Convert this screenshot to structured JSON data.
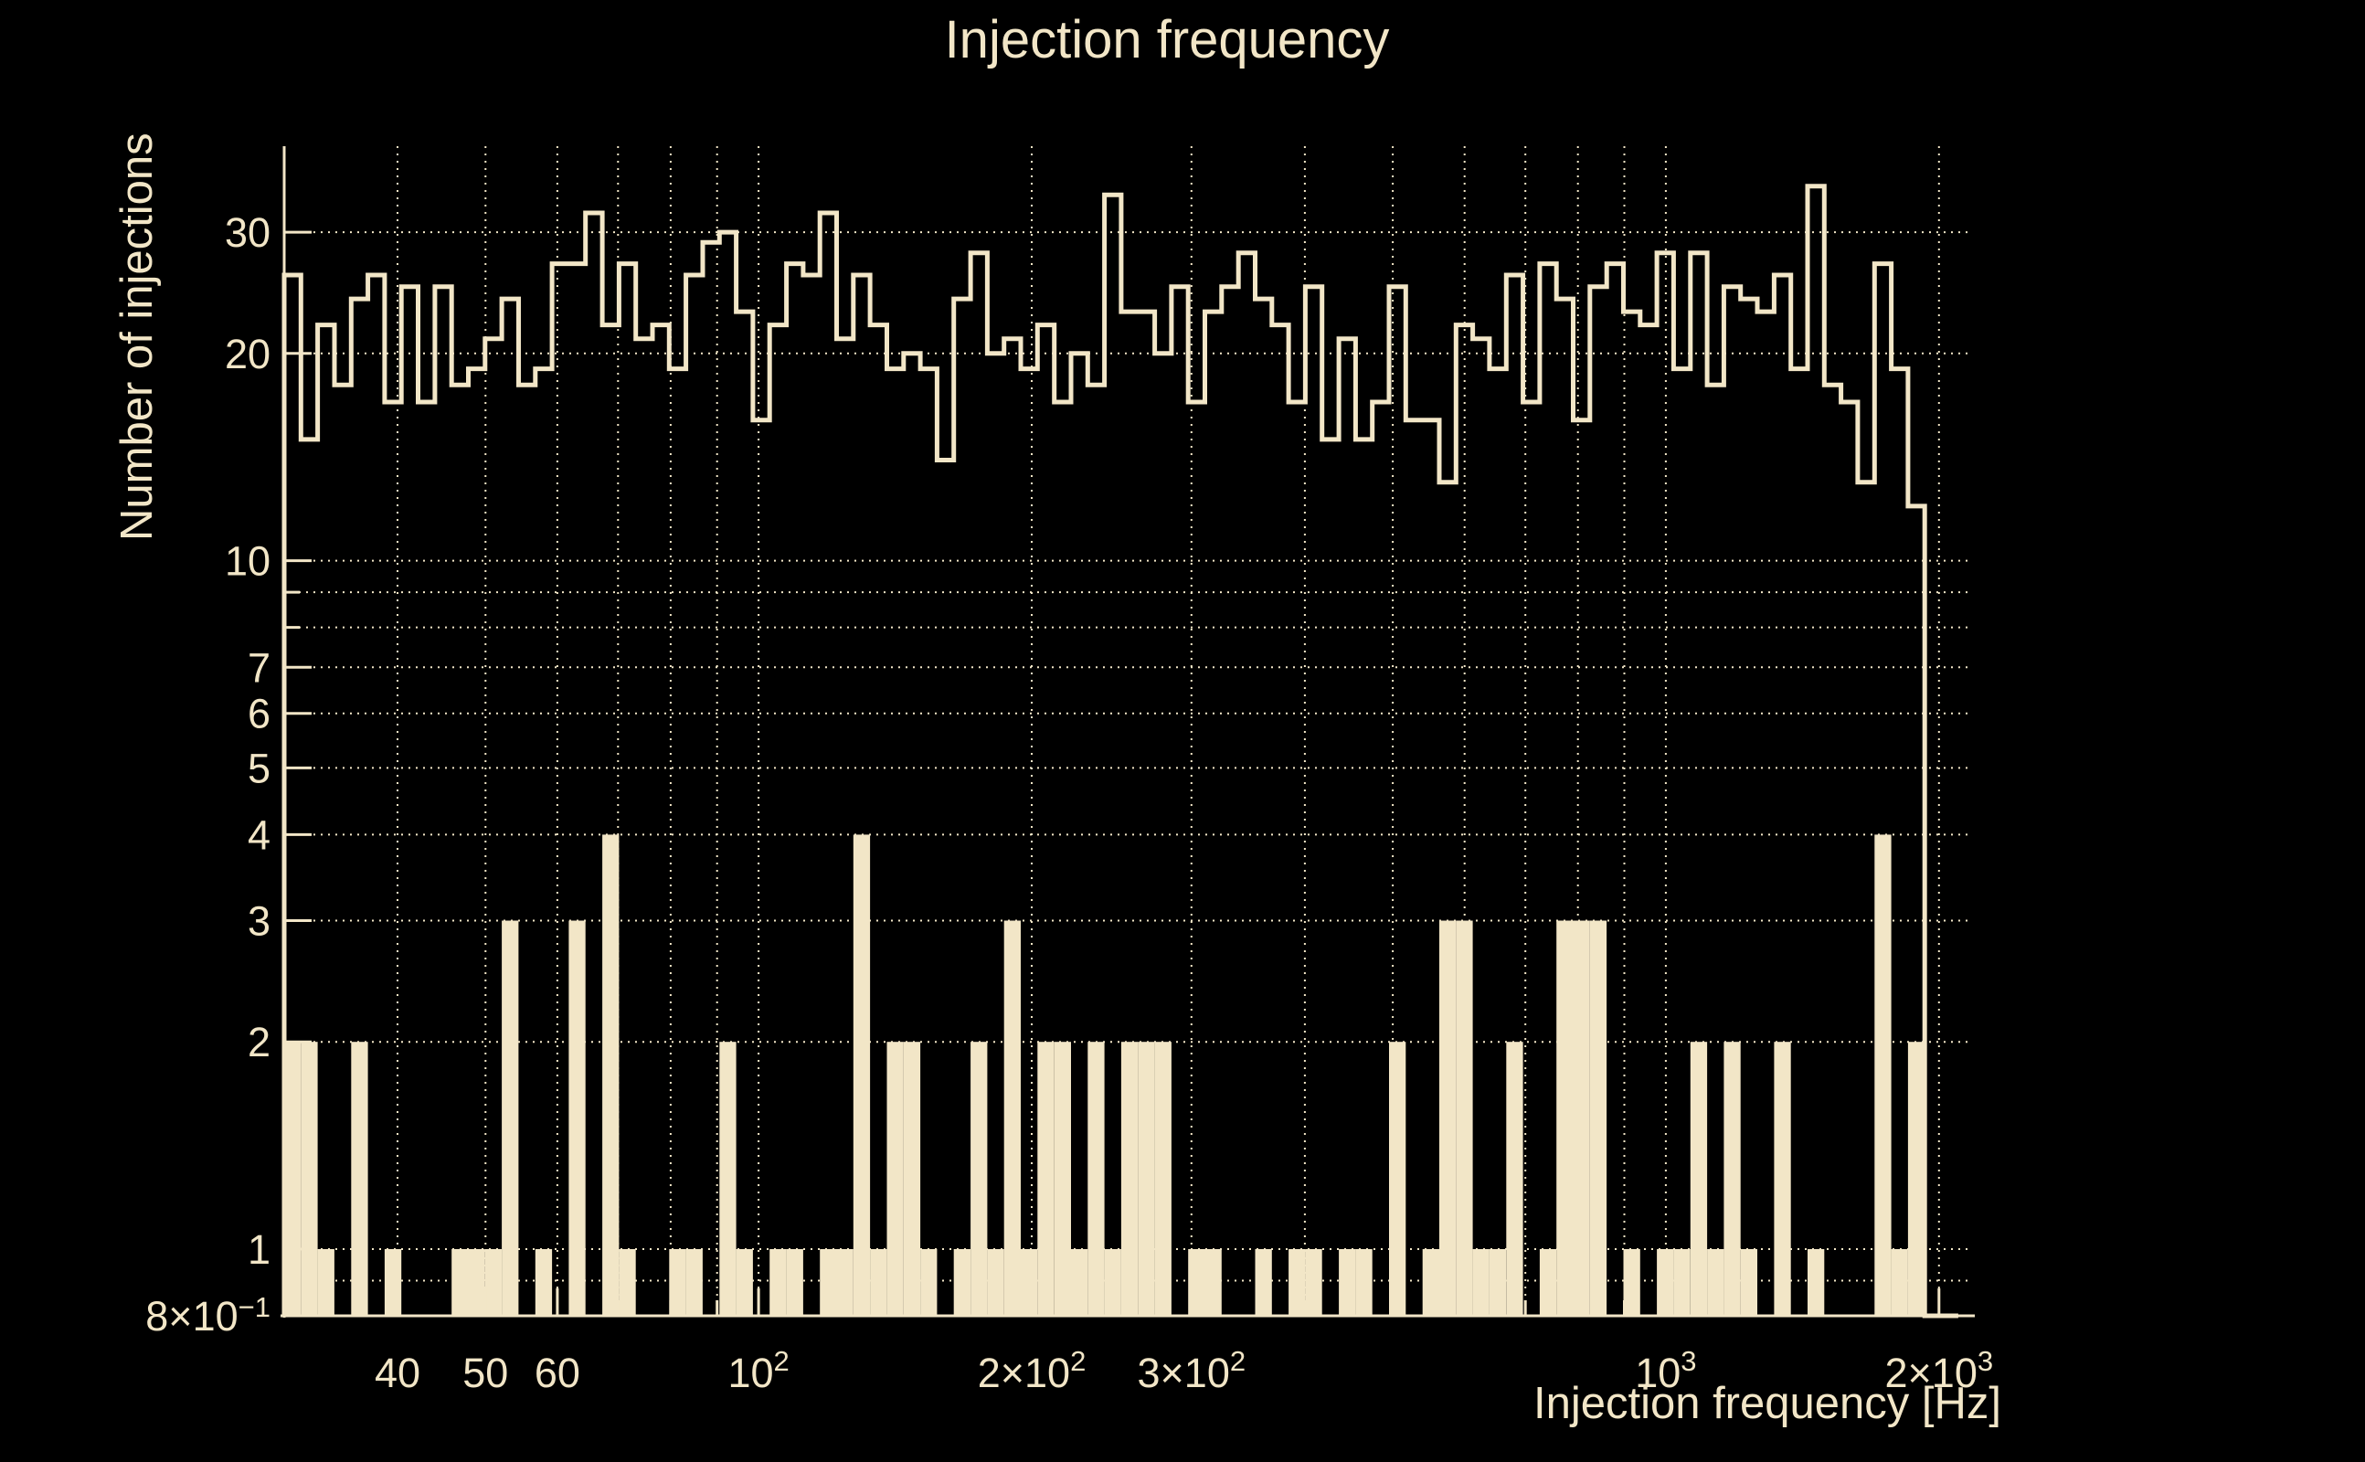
{
  "chart_data": {
    "type": "histogram",
    "title": "Injection frequency",
    "xlabel": "Injection frequency [Hz]",
    "ylabel": "Number of injections",
    "x_scale": "log",
    "y_scale": "log",
    "x_axis_range": [
      30,
      2150
    ],
    "y_axis_range": [
      0.8,
      40
    ],
    "bins_range": [
      30,
      2100
    ],
    "n_bins": 100,
    "grid": "dotted",
    "legend_position": "none",
    "colors": {
      "background": "#000000",
      "foreground": "#F2E6C7",
      "grid": "#F2E6C7"
    },
    "series": [
      {
        "name": "injections-per-frequency-outline",
        "style": "step-outline",
        "values": [
          26,
          15,
          22,
          18,
          24,
          26,
          17,
          25,
          17,
          25,
          18,
          19,
          21,
          24,
          18,
          19,
          27,
          27,
          32,
          22,
          27,
          21,
          22,
          19,
          26,
          29,
          30,
          23,
          16,
          22,
          27,
          26,
          32,
          21,
          26,
          22,
          19,
          20,
          19,
          14,
          24,
          28,
          20,
          21,
          19,
          22,
          17,
          20,
          18,
          34,
          23,
          23,
          20,
          25,
          17,
          23,
          25,
          28,
          24,
          22,
          17,
          25,
          15,
          21,
          15,
          17,
          25,
          16,
          16,
          13,
          22,
          21,
          19,
          26,
          17,
          27,
          24,
          16,
          25,
          27,
          23,
          22,
          28,
          19,
          28,
          18,
          25,
          24,
          23,
          26,
          19,
          35,
          18,
          17,
          13,
          27,
          19,
          12,
          0,
          0
        ]
      },
      {
        "name": "injections-per-frequency-filled",
        "style": "filled-bars",
        "values": [
          2,
          2,
          1,
          0,
          2,
          0,
          1,
          0,
          0,
          0,
          1,
          1,
          1,
          3,
          0,
          1,
          0,
          3,
          0,
          4,
          1,
          0,
          0,
          1,
          1,
          0,
          2,
          1,
          0,
          1,
          1,
          0,
          1,
          1,
          4,
          1,
          2,
          2,
          1,
          0,
          1,
          2,
          1,
          3,
          1,
          2,
          2,
          1,
          2,
          1,
          2,
          2,
          2,
          0,
          1,
          1,
          0,
          0,
          1,
          0,
          1,
          1,
          0,
          1,
          1,
          0,
          2,
          0,
          1,
          3,
          3,
          1,
          1,
          2,
          0,
          1,
          3,
          3,
          3,
          0,
          1,
          0,
          1,
          1,
          2,
          1,
          2,
          1,
          0,
          2,
          0,
          1,
          0,
          0,
          0,
          4,
          1,
          2,
          0,
          0
        ]
      }
    ],
    "x_ticks": [
      {
        "value": 40,
        "base": "40",
        "sup": ""
      },
      {
        "value": 50,
        "base": "50",
        "sup": ""
      },
      {
        "value": 60,
        "base": "60",
        "sup": ""
      },
      {
        "value": 100,
        "base": "10",
        "sup": "2"
      },
      {
        "value": 200,
        "base": "2×10",
        "sup": "2"
      },
      {
        "value": 300,
        "base": "3×10",
        "sup": "2"
      },
      {
        "value": 1000,
        "base": "10",
        "sup": "3"
      },
      {
        "value": 2000,
        "base": "2×10",
        "sup": "3"
      }
    ],
    "x_minor_ticks": [
      70,
      80,
      90,
      400,
      500,
      600,
      700,
      800,
      900
    ],
    "y_ticks": [
      {
        "value": 30,
        "base": "30",
        "sup": ""
      },
      {
        "value": 20,
        "base": "20",
        "sup": ""
      },
      {
        "value": 10,
        "base": "10",
        "sup": ""
      },
      {
        "value": 7,
        "base": "7",
        "sup": ""
      },
      {
        "value": 6,
        "base": "6",
        "sup": ""
      },
      {
        "value": 5,
        "base": "5",
        "sup": ""
      },
      {
        "value": 4,
        "base": "4",
        "sup": ""
      },
      {
        "value": 3,
        "base": "3",
        "sup": ""
      },
      {
        "value": 2,
        "base": "2",
        "sup": ""
      },
      {
        "value": 1,
        "base": "1",
        "sup": ""
      },
      {
        "value": 0.8,
        "base": "8×10",
        "sup": "−1"
      }
    ],
    "y_minor_ticks": [
      0.9,
      8,
      9
    ],
    "x_gridlines": [
      40,
      50,
      60,
      70,
      80,
      90,
      100,
      200,
      300,
      400,
      500,
      600,
      700,
      800,
      900,
      1000,
      2000
    ],
    "y_gridlines": [
      0.9,
      1,
      2,
      3,
      4,
      5,
      6,
      7,
      8,
      9,
      10,
      20,
      30
    ]
  }
}
